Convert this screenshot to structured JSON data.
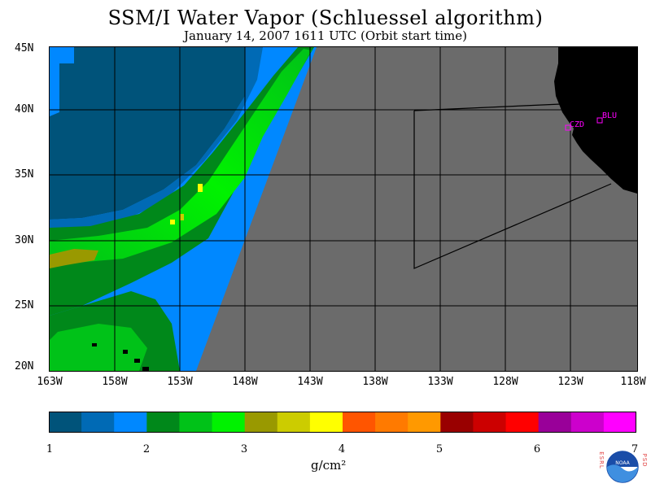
{
  "title": "SSM/I Water Vapor (Schluessel algorithm)",
  "subtitle": "January 14, 2007  1611 UTC  (Orbit start time)",
  "map": {
    "lat_labels": [
      "45N",
      "40N",
      "35N",
      "30N",
      "25N",
      "20N"
    ],
    "lon_labels": [
      "163W",
      "158W",
      "153W",
      "148W",
      "143W",
      "138W",
      "133W",
      "128W",
      "123W",
      "118W"
    ],
    "extent": {
      "lon_min": -163,
      "lon_max": -118,
      "lat_min": 20,
      "lat_max": 45
    },
    "stations": [
      {
        "id": "CZD",
        "lon": -123.0,
        "lat": 38.6
      },
      {
        "id": "BLU",
        "lon": -120.7,
        "lat": 39.3
      }
    ],
    "colors": {
      "no_data": "#6b6b6b",
      "land": "#000000",
      "station": "#ff00ff",
      "grid": "#000000"
    }
  },
  "colorbar": {
    "ticks": [
      "1",
      "2",
      "3",
      "4",
      "5",
      "6",
      "7"
    ],
    "units": "g/cm²",
    "colors": [
      "#00537a",
      "#006ab5",
      "#0088ff",
      "#00881a",
      "#00c218",
      "#00f200",
      "#999900",
      "#cccc00",
      "#ffff00",
      "#ff5500",
      "#ff7a00",
      "#ff9900",
      "#990000",
      "#cc0000",
      "#ff0000",
      "#990099",
      "#cc00cc",
      "#ff00ff"
    ]
  },
  "logo": {
    "left_text": "ESRL",
    "right_text": "PSD",
    "center_text": "NOAA"
  }
}
